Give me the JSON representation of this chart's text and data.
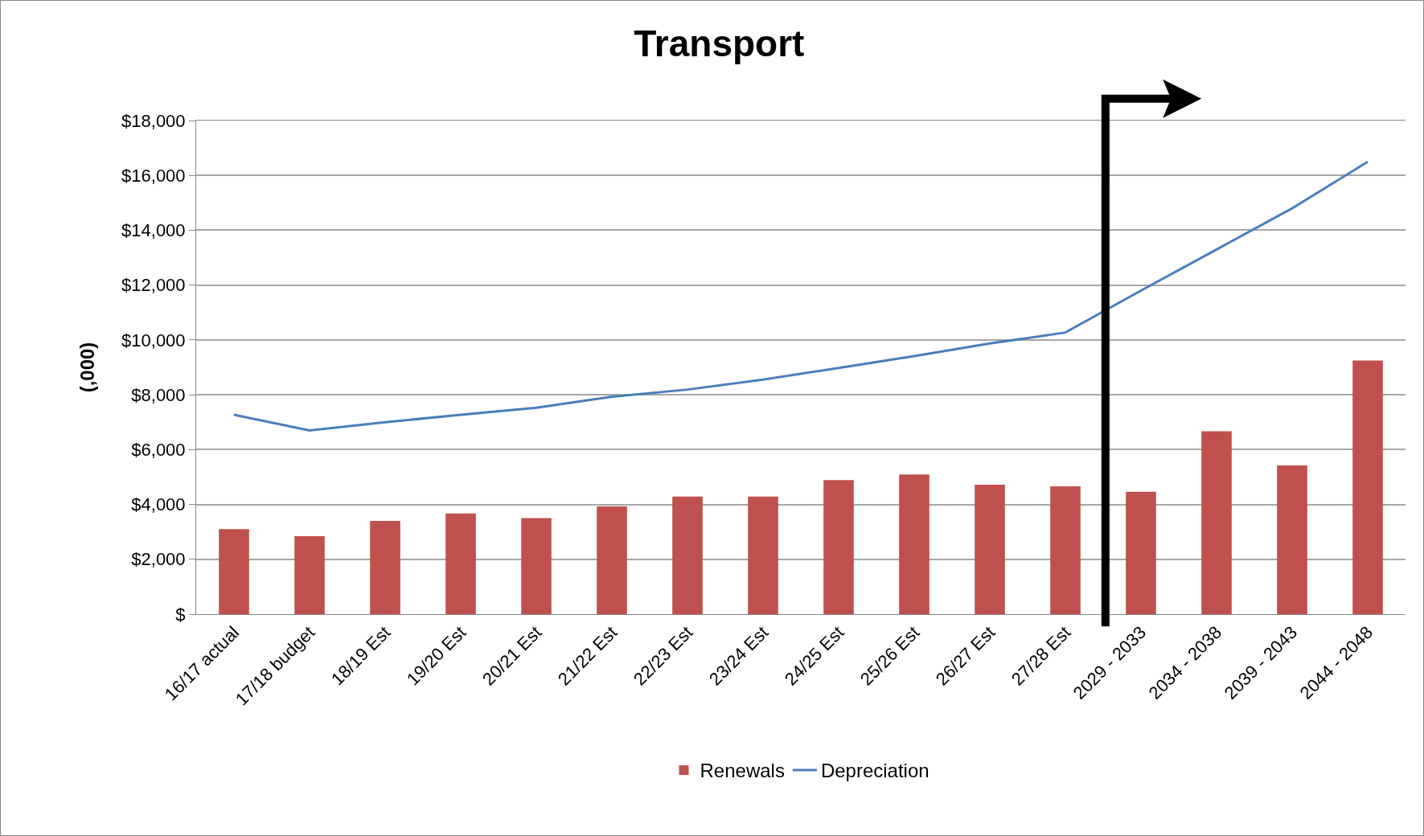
{
  "chart_data": {
    "type": "bar",
    "title": "Transport",
    "ylabel": "(,000)",
    "categories": [
      "16/17 actual",
      "17/18 budget",
      "18/19 Est",
      "19/20 Est",
      "20/21 Est",
      "21/22 Est",
      "22/23 Est",
      "23/24 Est",
      "24/25 Est",
      "25/26 Est",
      "26/27 Est",
      "27/28 Est",
      "2029 - 2033",
      "2034 - 2038",
      "2039 - 2043",
      "2044 - 2048"
    ],
    "series": [
      {
        "name": "Renewals",
        "color": "#c0504d",
        "values": [
          3100,
          2840,
          3400,
          3670,
          3500,
          3930,
          4290,
          4290,
          4890,
          5090,
          4720,
          4660,
          4460,
          6670,
          5420,
          9250
        ]
      },
      {
        "name": "Depreciation",
        "type": "line",
        "color": "#4a7ebb",
        "values": [
          7270,
          6700,
          7000,
          7270,
          7530,
          7930,
          8190,
          8550,
          8980,
          9410,
          9870,
          10270,
          11800,
          13300,
          14800,
          16500
        ]
      }
    ],
    "ylim": [
      0,
      18000
    ],
    "yticks": [
      {
        "value": 0,
        "label": "$"
      },
      {
        "value": 2000,
        "label": "$2,000"
      },
      {
        "value": 4000,
        "label": "$4,000"
      },
      {
        "value": 6000,
        "label": "$6,000"
      },
      {
        "value": 8000,
        "label": "$8,000"
      },
      {
        "value": 10000,
        "label": "$10,000"
      },
      {
        "value": 12000,
        "label": "$12,000"
      },
      {
        "value": 14000,
        "label": "$14,000"
      },
      {
        "value": 16000,
        "label": "$16,000"
      },
      {
        "value": 18000,
        "label": "$18,000"
      }
    ],
    "grid": "y",
    "legend": "bottom",
    "marker": "none",
    "line_style": "solid"
  }
}
